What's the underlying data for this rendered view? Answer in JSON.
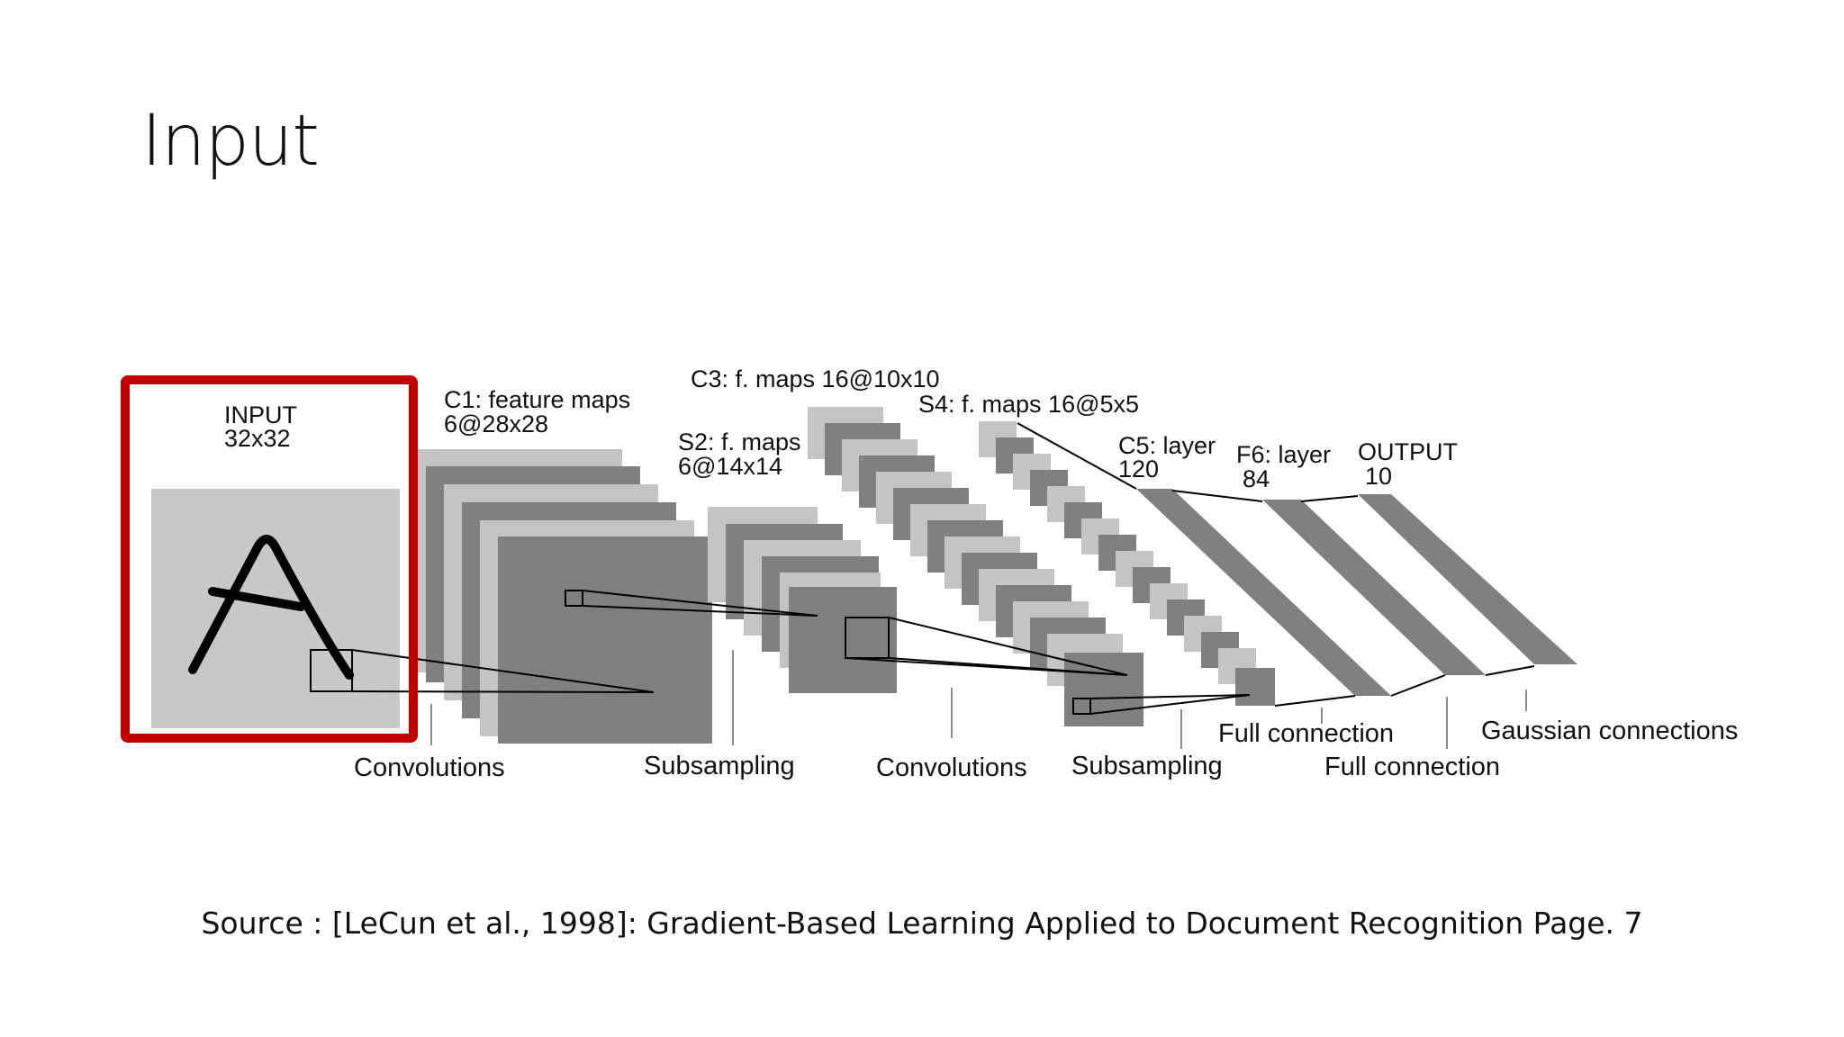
{
  "slide": {
    "title": "Input",
    "source": "Source : [LeCun et al., 1998]: Gradient-Based Learning Applied to Document Recognition Page. 7"
  },
  "diagram": {
    "layers": {
      "input": {
        "line1": "INPUT",
        "line2": "32x32"
      },
      "c1": {
        "line1": "C1: feature maps",
        "line2": "6@28x28"
      },
      "s2": {
        "line1": "S2: f. maps",
        "line2": "6@14x14"
      },
      "c3": {
        "line1": "C3: f. maps 16@10x10"
      },
      "s4": {
        "line1": "S4: f. maps 16@5x5"
      },
      "c5": {
        "line1": "C5: layer",
        "line2": "120"
      },
      "f6": {
        "line1": "F6: layer",
        "line2": "84"
      },
      "output": {
        "line1": "OUTPUT",
        "line2": "10"
      }
    },
    "operations": {
      "convolutions_1": "Convolutions",
      "subsampling_1": "Subsampling",
      "convolutions_2": "Convolutions",
      "subsampling_2": "Subsampling",
      "full_connection_1": "Full connection",
      "full_connection_2": "Full connection",
      "gaussian": "Gaussian connections"
    },
    "highlight_color": "#c00000",
    "map_dark": "#808080",
    "map_light": "#c4c4c4"
  }
}
